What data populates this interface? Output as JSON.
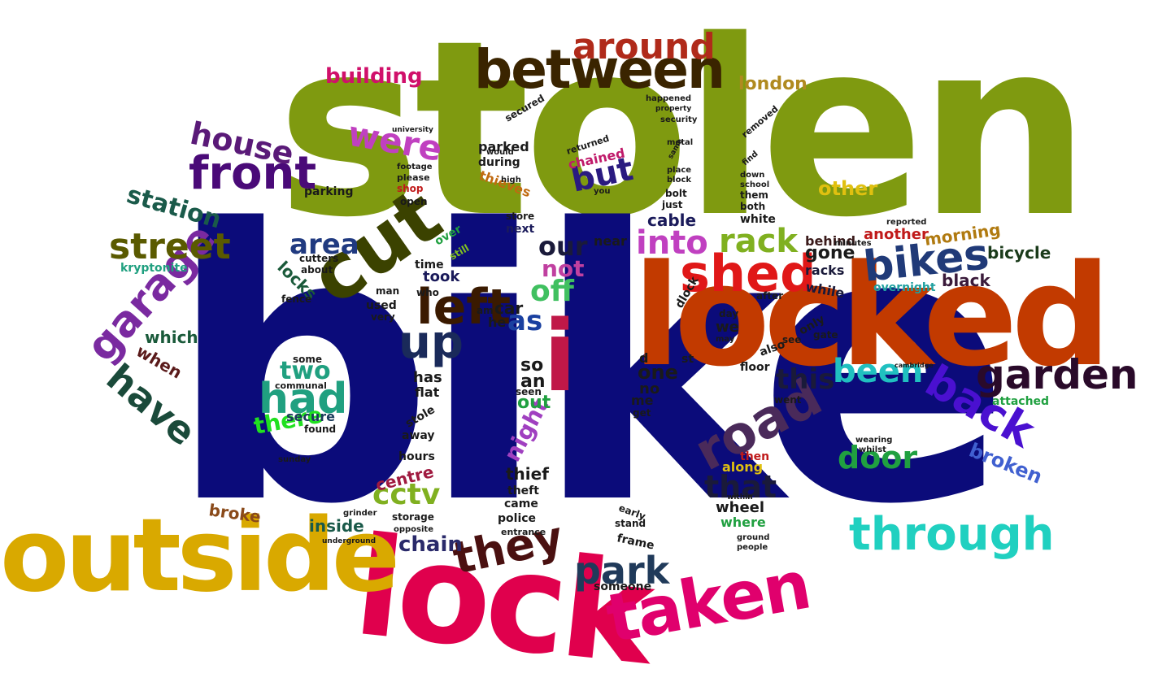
{
  "words": [
    {
      "text": "stolen",
      "color": "#7f9a10"
    },
    {
      "text": "bike",
      "color": "#0b0b7a"
    },
    {
      "text": "lock",
      "color": "#e0004d"
    },
    {
      "text": "locked",
      "color": "#c23a00"
    },
    {
      "text": "outside",
      "color": "#d9a900"
    },
    {
      "text": "between",
      "color": "#3a2400"
    },
    {
      "text": "around",
      "color": "#b02a1a"
    },
    {
      "text": "taken",
      "color": "#e0006d"
    },
    {
      "text": "cut",
      "color": "#3b4200"
    },
    {
      "text": "i",
      "color": "#c01848"
    },
    {
      "text": "shed",
      "color": "#e01818"
    },
    {
      "text": "front",
      "color": "#4a0a78"
    },
    {
      "text": "house",
      "color": "#5a1a78"
    },
    {
      "text": "garden",
      "color": "#2a0a2a"
    },
    {
      "text": "through",
      "color": "#20d0c0"
    },
    {
      "text": "road",
      "color": "#4a2a5a"
    },
    {
      "text": "they",
      "color": "#4a1010"
    },
    {
      "text": "bikes",
      "color": "#203a78"
    },
    {
      "text": "back",
      "color": "#4a10d0"
    },
    {
      "text": "garage",
      "color": "#7a2aa0"
    },
    {
      "text": "left",
      "color": "#3a1a00"
    },
    {
      "text": "up",
      "color": "#1a2a5a"
    },
    {
      "text": "had",
      "color": "#20a080"
    },
    {
      "text": "park",
      "color": "#203a5a"
    },
    {
      "text": "were",
      "color": "#c040c0"
    },
    {
      "text": "street",
      "color": "#5a5a00"
    },
    {
      "text": "have",
      "color": "#1a4a3a"
    },
    {
      "text": "station",
      "color": "#1a5a4a"
    },
    {
      "text": "into",
      "color": "#c040c0"
    },
    {
      "text": "rack",
      "color": "#80b020"
    },
    {
      "text": "been",
      "color": "#20c0c0"
    },
    {
      "text": "door",
      "color": "#20a040"
    },
    {
      "text": "that",
      "color": "#1a1a3a"
    },
    {
      "text": "this",
      "color": "#1a1a3a"
    },
    {
      "text": "but",
      "color": "#2a1a80"
    },
    {
      "text": "area",
      "color": "#203a80"
    },
    {
      "text": "our",
      "color": "#1a1a3a"
    },
    {
      "text": "building",
      "color": "#d0106a"
    },
    {
      "text": "london",
      "color": "#b08a20"
    },
    {
      "text": "broken",
      "color": "#4060d0"
    },
    {
      "text": "two",
      "color": "#20a080"
    },
    {
      "text": "there",
      "color": "#20e020"
    },
    {
      "text": "cctv",
      "color": "#80b020"
    },
    {
      "text": "off",
      "color": "#40c060"
    },
    {
      "text": "as",
      "color": "#1a40a0"
    },
    {
      "text": "not",
      "color": "#c040a0"
    },
    {
      "text": "night",
      "color": "#a040c0"
    },
    {
      "text": "chain",
      "color": "#2a2a6a"
    },
    {
      "text": "centre",
      "color": "#a01a40"
    },
    {
      "text": "cable",
      "color": "#1a1a5a"
    },
    {
      "text": "other",
      "color": "#e0c010"
    },
    {
      "text": "gone",
      "color": "#1a1a1a"
    },
    {
      "text": "morning",
      "color": "#b07a10"
    },
    {
      "text": "bicycle",
      "color": "#1a3a1a"
    },
    {
      "text": "black",
      "color": "#3a1a3a"
    },
    {
      "text": "another",
      "color": "#c01a1a"
    },
    {
      "text": "overnight",
      "color": "#20a0a0"
    },
    {
      "text": "behind",
      "color": "#3a1a1a"
    },
    {
      "text": "racks",
      "color": "#1a1a3a"
    },
    {
      "text": "while",
      "color": "#1a1a3a"
    },
    {
      "text": "attached",
      "color": "#20a040"
    },
    {
      "text": "wheel",
      "color": "#1a1a1a"
    },
    {
      "text": "where",
      "color": "#20a040"
    },
    {
      "text": "along",
      "color": "#e0c010"
    },
    {
      "text": "then",
      "color": "#c01a1a"
    },
    {
      "text": "inside",
      "color": "#1a5a4a"
    },
    {
      "text": "broke",
      "color": "#8a4a1a"
    },
    {
      "text": "kryptonite",
      "color": "#20a080"
    },
    {
      "text": "which",
      "color": "#1a5a3a"
    },
    {
      "text": "when",
      "color": "#5a1a1a"
    },
    {
      "text": "locks",
      "color": "#1a5a3a"
    },
    {
      "text": "cutters",
      "color": "#1a1a1a"
    },
    {
      "text": "about",
      "color": "#1a1a1a"
    },
    {
      "text": "fence",
      "color": "#1a1a1a"
    },
    {
      "text": "secure",
      "color": "#1a3a5a"
    },
    {
      "text": "found",
      "color": "#1a1a1a"
    },
    {
      "text": "communal",
      "color": "#1a1a1a"
    },
    {
      "text": "some",
      "color": "#1a1a1a"
    },
    {
      "text": "sunday",
      "color": "#1a1a1a"
    },
    {
      "text": "parking",
      "color": "#1a1a1a"
    },
    {
      "text": "shop",
      "color": "#c01a1a"
    },
    {
      "text": "open",
      "color": "#1a1a1a"
    },
    {
      "text": "please",
      "color": "#1a1a1a"
    },
    {
      "text": "footage",
      "color": "#1a1a1a"
    },
    {
      "text": "university",
      "color": "#1a1a1a"
    },
    {
      "text": "parked",
      "color": "#1a1a1a"
    },
    {
      "text": "during",
      "color": "#1a1a1a"
    },
    {
      "text": "thieves",
      "color": "#c06a10"
    },
    {
      "text": "secured",
      "color": "#1a1a1a"
    },
    {
      "text": "chained",
      "color": "#c01a6a"
    },
    {
      "text": "returned",
      "color": "#1a1a1a"
    },
    {
      "text": "would",
      "color": "#1a1a1a"
    },
    {
      "text": "high",
      "color": "#1a1a1a"
    },
    {
      "text": "store",
      "color": "#1a1a1a"
    },
    {
      "text": "next",
      "color": "#1a1a5a"
    },
    {
      "text": "took",
      "color": "#1a1a5a"
    },
    {
      "text": "time",
      "color": "#1a1a1a"
    },
    {
      "text": "over",
      "color": "#20a040"
    },
    {
      "text": "still",
      "color": "#80c020"
    },
    {
      "text": "who",
      "color": "#1a1a1a"
    },
    {
      "text": "man",
      "color": "#1a1a1a"
    },
    {
      "text": "used",
      "color": "#1a1a1a"
    },
    {
      "text": "very",
      "color": "#1a1a1a"
    },
    {
      "text": "car",
      "color": "#1a1a1a"
    },
    {
      "text": "he",
      "color": "#1a1a1a"
    },
    {
      "text": "am",
      "color": "#1a1a1a"
    },
    {
      "text": "has",
      "color": "#1a1a1a"
    },
    {
      "text": "flat",
      "color": "#1a1a1a"
    },
    {
      "text": "so",
      "color": "#1a1a1a"
    },
    {
      "text": "an",
      "color": "#1a1a1a"
    },
    {
      "text": "out",
      "color": "#20a040"
    },
    {
      "text": "seen",
      "color": "#1a1a1a"
    },
    {
      "text": "stole",
      "color": "#1a1a1a"
    },
    {
      "text": "away",
      "color": "#1a1a1a"
    },
    {
      "text": "hours",
      "color": "#1a1a1a"
    },
    {
      "text": "thief",
      "color": "#1a1a1a"
    },
    {
      "text": "theft",
      "color": "#1a1a1a"
    },
    {
      "text": "came",
      "color": "#1a1a1a"
    },
    {
      "text": "police",
      "color": "#1a1a1a"
    },
    {
      "text": "entrance",
      "color": "#1a1a1a"
    },
    {
      "text": "storage",
      "color": "#1a1a1a"
    },
    {
      "text": "opposite",
      "color": "#1a1a1a"
    },
    {
      "text": "grinder",
      "color": "#1a1a1a"
    },
    {
      "text": "underground",
      "color": "#1a1a1a"
    },
    {
      "text": "someone",
      "color": "#1a1a1a"
    },
    {
      "text": "frame",
      "color": "#1a1a1a"
    },
    {
      "text": "stand",
      "color": "#1a1a1a"
    },
    {
      "text": "early",
      "color": "#1a1a1a"
    },
    {
      "text": "near",
      "color": "#1a1a1a"
    },
    {
      "text": "one",
      "color": "#1a1a1a"
    },
    {
      "text": "no",
      "color": "#1a1a1a"
    },
    {
      "text": "me",
      "color": "#1a1a1a"
    },
    {
      "text": "get",
      "color": "#1a1a1a"
    },
    {
      "text": "d",
      "color": "#1a1a1a"
    },
    {
      "text": "we",
      "color": "#1a1a1a"
    },
    {
      "text": "day",
      "color": "#1a1a1a"
    },
    {
      "text": "may",
      "color": "#1a1a1a"
    },
    {
      "text": "st",
      "color": "#1a1a1a"
    },
    {
      "text": "floor",
      "color": "#1a1a1a"
    },
    {
      "text": "also",
      "color": "#1a1a1a"
    },
    {
      "text": "after",
      "color": "#1a1a1a"
    },
    {
      "text": "went",
      "color": "#1a1a1a"
    },
    {
      "text": "only",
      "color": "#1a1a1a"
    },
    {
      "text": "gate",
      "color": "#1a1a1a"
    },
    {
      "text": "see",
      "color": "#1a1a1a"
    },
    {
      "text": "white",
      "color": "#1a1a1a"
    },
    {
      "text": "both",
      "color": "#1a1a1a"
    },
    {
      "text": "them",
      "color": "#1a1a1a"
    },
    {
      "text": "school",
      "color": "#1a1a1a"
    },
    {
      "text": "down",
      "color": "#1a1a1a"
    },
    {
      "text": "find",
      "color": "#1a1a1a"
    },
    {
      "text": "removed",
      "color": "#1a1a1a"
    },
    {
      "text": "just",
      "color": "#1a1a1a"
    },
    {
      "text": "bolt",
      "color": "#1a1a1a"
    },
    {
      "text": "block",
      "color": "#1a1a1a"
    },
    {
      "text": "place",
      "color": "#1a1a1a"
    },
    {
      "text": "metal",
      "color": "#1a1a1a"
    },
    {
      "text": "security",
      "color": "#1a1a1a"
    },
    {
      "text": "happened",
      "color": "#1a1a1a"
    },
    {
      "text": "property",
      "color": "#1a1a1a"
    },
    {
      "text": "same",
      "color": "#1a1a1a"
    },
    {
      "text": "you",
      "color": "#1a1a1a"
    },
    {
      "text": "minutes",
      "color": "#1a1a1a"
    },
    {
      "text": "reported",
      "color": "#1a1a1a"
    },
    {
      "text": "wearing",
      "color": "#1a1a1a"
    },
    {
      "text": "whilst",
      "color": "#1a1a1a"
    },
    {
      "text": "ground",
      "color": "#1a1a1a"
    },
    {
      "text": "people",
      "color": "#1a1a1a"
    },
    {
      "text": "within",
      "color": "#1a1a1a"
    },
    {
      "text": "cambridge",
      "color": "#1a1a1a"
    },
    {
      "text": "dlock",
      "color": "#1a1a1a"
    }
  ]
}
